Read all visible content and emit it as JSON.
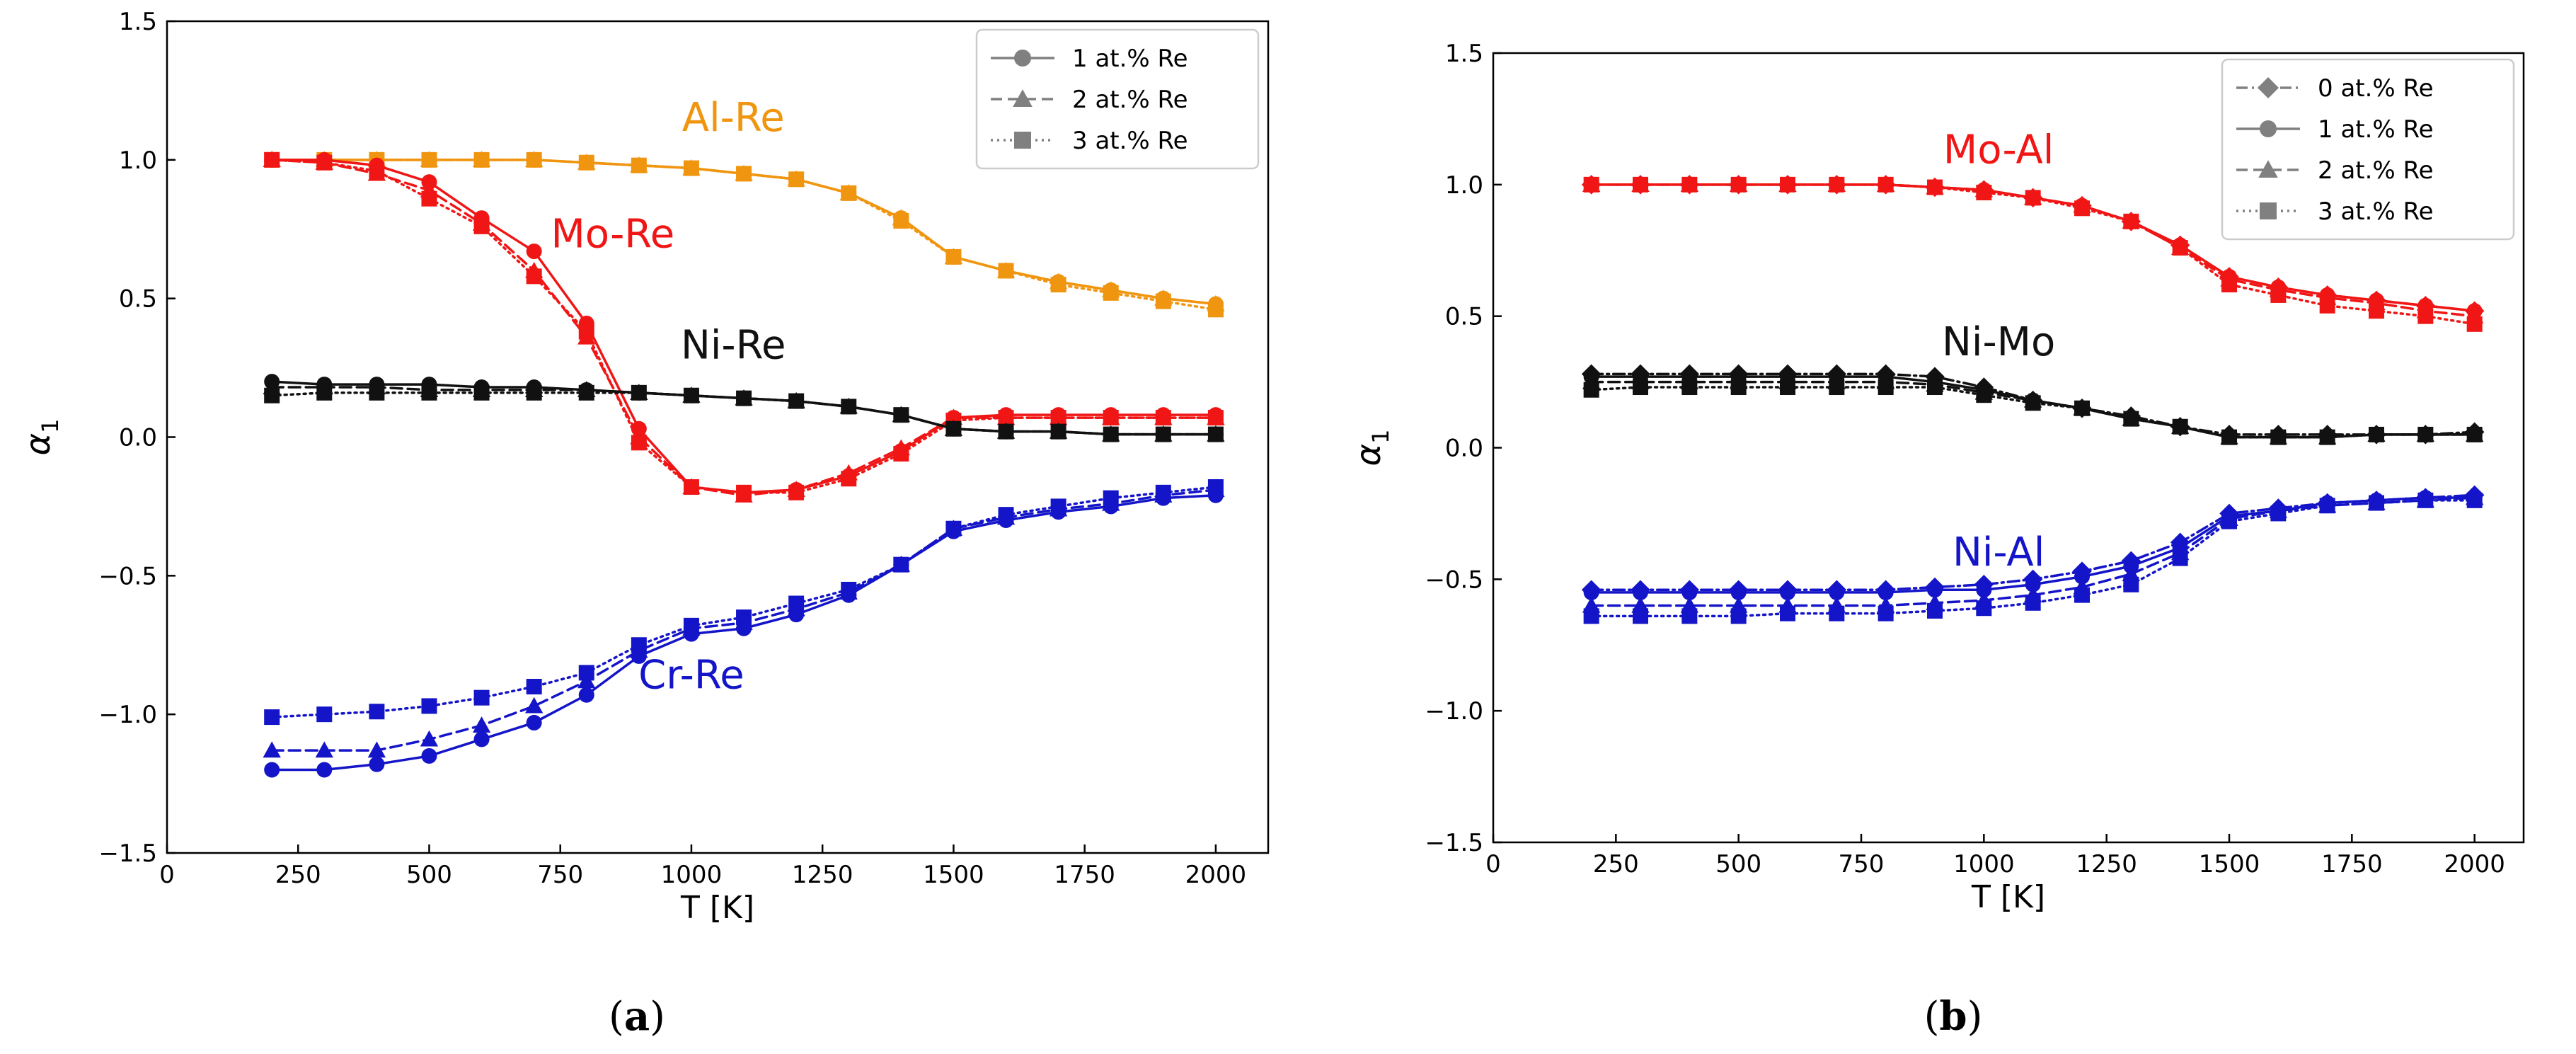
{
  "chart_data": [
    {
      "panel": "a",
      "type": "line",
      "caption": "(a)",
      "xlabel": "T [K]",
      "ylabel": "α1",
      "xlim": [
        0,
        2100
      ],
      "ylim": [
        -1.5,
        1.5
      ],
      "xticks": [
        0,
        250,
        500,
        750,
        1000,
        1250,
        1500,
        1750,
        2000
      ],
      "yticks": [
        -1.5,
        -1.0,
        -0.5,
        0.0,
        0.5,
        1.0,
        1.5
      ],
      "x": [
        200,
        300,
        400,
        500,
        600,
        700,
        800,
        900,
        1000,
        1100,
        1200,
        1300,
        1400,
        1500,
        1600,
        1700,
        1800,
        1900,
        2000
      ],
      "legend": {
        "placement": "top-right",
        "entries": [
          {
            "label": "1 at.% Re",
            "marker": "circle",
            "dash": "solid"
          },
          {
            "label": "2 at.% Re",
            "marker": "triangle",
            "dash": "dashed"
          },
          {
            "label": "3 at.% Re",
            "marker": "square",
            "dash": "dotted"
          }
        ]
      },
      "groups": [
        {
          "name": "Al-Re",
          "color": "#f0950f",
          "label_pos": {
            "x": 1080,
            "y": 1.15
          },
          "series": [
            {
              "name": "1 at.% Re",
              "marker": "circle",
              "dash": "solid",
              "values": [
                1.0,
                1.0,
                1.0,
                1.0,
                1.0,
                1.0,
                0.99,
                0.98,
                0.97,
                0.95,
                0.93,
                0.88,
                0.79,
                0.65,
                0.6,
                0.56,
                0.53,
                0.5,
                0.48
              ]
            },
            {
              "name": "2 at.% Re",
              "marker": "triangle",
              "dash": "dashed",
              "values": [
                1.0,
                1.0,
                1.0,
                1.0,
                1.0,
                1.0,
                0.99,
                0.98,
                0.97,
                0.95,
                0.93,
                0.88,
                0.79,
                0.65,
                0.6,
                0.56,
                0.53,
                0.5,
                0.48
              ]
            },
            {
              "name": "3 at.% Re",
              "marker": "square",
              "dash": "dotted",
              "values": [
                1.0,
                1.0,
                1.0,
                1.0,
                1.0,
                1.0,
                0.99,
                0.98,
                0.97,
                0.95,
                0.93,
                0.88,
                0.78,
                0.65,
                0.6,
                0.55,
                0.52,
                0.49,
                0.46
              ]
            }
          ]
        },
        {
          "name": "Mo-Re",
          "color": "#f01616",
          "label_pos": {
            "x": 850,
            "y": 0.73
          },
          "series": [
            {
              "name": "1 at.% Re",
              "marker": "circle",
              "dash": "solid",
              "values": [
                1.0,
                1.0,
                0.98,
                0.92,
                0.79,
                0.67,
                0.41,
                0.03,
                -0.18,
                -0.2,
                -0.19,
                -0.14,
                -0.05,
                0.07,
                0.08,
                0.08,
                0.08,
                0.08,
                0.08
              ]
            },
            {
              "name": "2 at.% Re",
              "marker": "triangle",
              "dash": "dashed",
              "values": [
                1.0,
                0.99,
                0.95,
                0.89,
                0.77,
                0.6,
                0.36,
                0.0,
                -0.18,
                -0.21,
                -0.19,
                -0.13,
                -0.04,
                0.07,
                0.07,
                0.07,
                0.07,
                0.07,
                0.07
              ]
            },
            {
              "name": "3 at.% Re",
              "marker": "square",
              "dash": "dotted",
              "values": [
                1.0,
                0.99,
                0.96,
                0.86,
                0.76,
                0.58,
                0.38,
                -0.02,
                -0.18,
                -0.2,
                -0.2,
                -0.15,
                -0.06,
                0.06,
                0.07,
                0.07,
                0.07,
                0.07,
                0.07
              ]
            }
          ]
        },
        {
          "name": "Ni-Re",
          "color": "#111111",
          "label_pos": {
            "x": 1080,
            "y": 0.33
          },
          "series": [
            {
              "name": "1 at.% Re",
              "marker": "circle",
              "dash": "solid",
              "values": [
                0.2,
                0.19,
                0.19,
                0.19,
                0.18,
                0.18,
                0.17,
                0.16,
                0.15,
                0.14,
                0.13,
                0.11,
                0.08,
                0.03,
                0.02,
                0.02,
                0.01,
                0.01,
                0.01
              ]
            },
            {
              "name": "2 at.% Re",
              "marker": "triangle",
              "dash": "dashed",
              "values": [
                0.18,
                0.18,
                0.18,
                0.17,
                0.17,
                0.17,
                0.17,
                0.16,
                0.15,
                0.14,
                0.13,
                0.11,
                0.08,
                0.03,
                0.02,
                0.02,
                0.01,
                0.01,
                0.01
              ]
            },
            {
              "name": "3 at.% Re",
              "marker": "square",
              "dash": "dotted",
              "values": [
                0.15,
                0.16,
                0.16,
                0.16,
                0.16,
                0.16,
                0.16,
                0.16,
                0.15,
                0.14,
                0.13,
                0.11,
                0.08,
                0.03,
                0.02,
                0.02,
                0.01,
                0.01,
                0.01
              ]
            }
          ]
        },
        {
          "name": "Cr-Re",
          "color": "#1414c8",
          "label_pos": {
            "x": 1000,
            "y": -0.86
          },
          "series": [
            {
              "name": "1 at.% Re",
              "marker": "circle",
              "dash": "solid",
              "values": [
                -1.2,
                -1.2,
                -1.18,
                -1.15,
                -1.09,
                -1.03,
                -0.93,
                -0.79,
                -0.71,
                -0.69,
                -0.64,
                -0.57,
                -0.46,
                -0.34,
                -0.3,
                -0.27,
                -0.25,
                -0.22,
                -0.21
              ]
            },
            {
              "name": "2 at.% Re",
              "marker": "triangle",
              "dash": "dashed",
              "values": [
                -1.13,
                -1.13,
                -1.13,
                -1.09,
                -1.04,
                -0.97,
                -0.88,
                -0.77,
                -0.69,
                -0.67,
                -0.62,
                -0.56,
                -0.46,
                -0.33,
                -0.29,
                -0.26,
                -0.24,
                -0.21,
                -0.19
              ]
            },
            {
              "name": "3 at.% Re",
              "marker": "square",
              "dash": "dotted",
              "values": [
                -1.01,
                -1.0,
                -0.99,
                -0.97,
                -0.94,
                -0.9,
                -0.85,
                -0.75,
                -0.68,
                -0.65,
                -0.6,
                -0.55,
                -0.46,
                -0.33,
                -0.28,
                -0.25,
                -0.22,
                -0.2,
                -0.18
              ]
            }
          ]
        }
      ]
    },
    {
      "panel": "b",
      "type": "line",
      "caption": "(b)",
      "xlabel": "T [K]",
      "ylabel": "α1",
      "xlim": [
        0,
        2100
      ],
      "ylim": [
        -1.5,
        1.5
      ],
      "xticks": [
        0,
        250,
        500,
        750,
        1000,
        1250,
        1500,
        1750,
        2000
      ],
      "yticks": [
        -1.5,
        -1.0,
        -0.5,
        0.0,
        0.5,
        1.0,
        1.5
      ],
      "x": [
        200,
        300,
        400,
        500,
        600,
        700,
        800,
        900,
        1000,
        1100,
        1200,
        1300,
        1400,
        1500,
        1600,
        1700,
        1800,
        1900,
        2000
      ],
      "legend": {
        "placement": "top-right",
        "entries": [
          {
            "label": "0 at.% Re",
            "marker": "diamond",
            "dash": "dashdot"
          },
          {
            "label": "1 at.% Re",
            "marker": "circle",
            "dash": "solid"
          },
          {
            "label": "2 at.% Re",
            "marker": "triangle",
            "dash": "dashed"
          },
          {
            "label": "3 at.% Re",
            "marker": "square",
            "dash": "dotted"
          }
        ]
      },
      "groups": [
        {
          "name": "Mo-Al",
          "color": "#f01616",
          "label_pos": {
            "x": 1030,
            "y": 1.13
          },
          "series": [
            {
              "name": "0 at.% Re",
              "marker": "diamond",
              "dash": "dashdot",
              "values": [
                1.0,
                1.0,
                1.0,
                1.0,
                1.0,
                1.0,
                1.0,
                0.99,
                0.98,
                0.95,
                0.92,
                0.86,
                0.77,
                0.65,
                0.61,
                0.58,
                0.56,
                0.54,
                0.52
              ]
            },
            {
              "name": "1 at.% Re",
              "marker": "circle",
              "dash": "solid",
              "values": [
                1.0,
                1.0,
                1.0,
                1.0,
                1.0,
                1.0,
                1.0,
                0.99,
                0.98,
                0.95,
                0.92,
                0.86,
                0.77,
                0.65,
                0.61,
                0.58,
                0.56,
                0.54,
                0.52
              ]
            },
            {
              "name": "2 at.% Re",
              "marker": "triangle",
              "dash": "dashed",
              "values": [
                1.0,
                1.0,
                1.0,
                1.0,
                1.0,
                1.0,
                1.0,
                0.99,
                0.98,
                0.95,
                0.92,
                0.86,
                0.76,
                0.64,
                0.6,
                0.57,
                0.55,
                0.52,
                0.5
              ]
            },
            {
              "name": "3 at.% Re",
              "marker": "square",
              "dash": "dotted",
              "values": [
                1.0,
                1.0,
                1.0,
                1.0,
                1.0,
                1.0,
                1.0,
                0.99,
                0.97,
                0.95,
                0.91,
                0.86,
                0.76,
                0.62,
                0.58,
                0.54,
                0.52,
                0.5,
                0.47
              ]
            }
          ]
        },
        {
          "name": "Ni-Mo",
          "color": "#111111",
          "label_pos": {
            "x": 1030,
            "y": 0.4
          },
          "series": [
            {
              "name": "0 at.% Re",
              "marker": "diamond",
              "dash": "dashdot",
              "values": [
                0.28,
                0.28,
                0.28,
                0.28,
                0.28,
                0.28,
                0.28,
                0.27,
                0.23,
                0.18,
                0.15,
                0.12,
                0.08,
                0.05,
                0.05,
                0.05,
                0.05,
                0.05,
                0.06
              ]
            },
            {
              "name": "1 at.% Re",
              "marker": "circle",
              "dash": "solid",
              "values": [
                0.27,
                0.27,
                0.27,
                0.27,
                0.27,
                0.27,
                0.27,
                0.25,
                0.22,
                0.18,
                0.15,
                0.11,
                0.08,
                0.04,
                0.04,
                0.04,
                0.05,
                0.05,
                0.05
              ]
            },
            {
              "name": "2 at.% Re",
              "marker": "triangle",
              "dash": "dashed",
              "values": [
                0.25,
                0.25,
                0.25,
                0.25,
                0.25,
                0.25,
                0.25,
                0.24,
                0.21,
                0.18,
                0.15,
                0.11,
                0.08,
                0.04,
                0.04,
                0.04,
                0.05,
                0.05,
                0.05
              ]
            },
            {
              "name": "3 at.% Re",
              "marker": "square",
              "dash": "dotted",
              "values": [
                0.22,
                0.23,
                0.23,
                0.23,
                0.23,
                0.23,
                0.23,
                0.23,
                0.2,
                0.17,
                0.15,
                0.11,
                0.08,
                0.04,
                0.04,
                0.04,
                0.05,
                0.05,
                0.05
              ]
            }
          ]
        },
        {
          "name": "Ni-Al",
          "color": "#1414c8",
          "label_pos": {
            "x": 1030,
            "y": -0.4
          },
          "series": [
            {
              "name": "0 at.% Re",
              "marker": "diamond",
              "dash": "dashdot",
              "values": [
                -0.54,
                -0.54,
                -0.54,
                -0.54,
                -0.54,
                -0.54,
                -0.54,
                -0.53,
                -0.52,
                -0.5,
                -0.47,
                -0.43,
                -0.36,
                -0.25,
                -0.23,
                -0.21,
                -0.2,
                -0.19,
                -0.18
              ]
            },
            {
              "name": "1 at.% Re",
              "marker": "circle",
              "dash": "solid",
              "values": [
                -0.55,
                -0.55,
                -0.55,
                -0.55,
                -0.55,
                -0.55,
                -0.55,
                -0.54,
                -0.54,
                -0.52,
                -0.49,
                -0.45,
                -0.38,
                -0.26,
                -0.24,
                -0.21,
                -0.2,
                -0.19,
                -0.19
              ]
            },
            {
              "name": "2 at.% Re",
              "marker": "triangle",
              "dash": "dashed",
              "values": [
                -0.6,
                -0.6,
                -0.6,
                -0.6,
                -0.6,
                -0.6,
                -0.6,
                -0.59,
                -0.58,
                -0.56,
                -0.53,
                -0.48,
                -0.4,
                -0.27,
                -0.24,
                -0.22,
                -0.21,
                -0.2,
                -0.19
              ]
            },
            {
              "name": "3 at.% Re",
              "marker": "square",
              "dash": "dotted",
              "values": [
                -0.64,
                -0.64,
                -0.64,
                -0.64,
                -0.63,
                -0.63,
                -0.63,
                -0.62,
                -0.61,
                -0.59,
                -0.56,
                -0.52,
                -0.42,
                -0.28,
                -0.25,
                -0.22,
                -0.21,
                -0.2,
                -0.2
              ]
            }
          ]
        }
      ]
    }
  ]
}
